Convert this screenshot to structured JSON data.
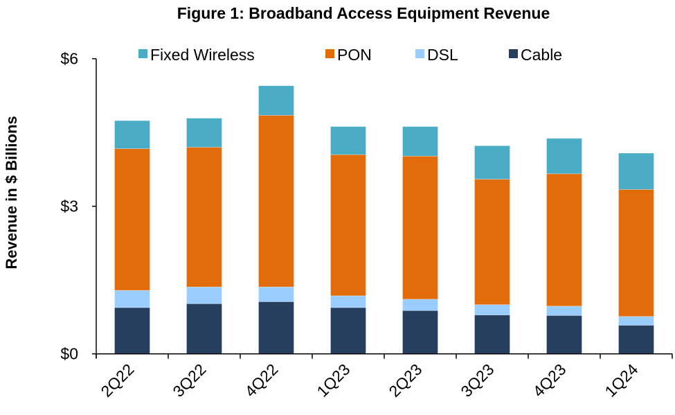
{
  "chart_data": {
    "type": "bar",
    "stacked": true,
    "title": "Figure 1: Broadband Access Equipment Revenue",
    "xlabel": "",
    "ylabel": "Revenue in $ Billions",
    "ylim": [
      0,
      6
    ],
    "yticks": [
      0,
      3,
      6
    ],
    "ytick_labels": [
      "$0",
      "$3",
      "$6"
    ],
    "grid": false,
    "legend_position": "top",
    "categories": [
      "2Q22",
      "3Q22",
      "4Q22",
      "1Q23",
      "2Q23",
      "3Q23",
      "4Q23",
      "1Q24"
    ],
    "series": [
      {
        "name": "Cable",
        "color": "#263f5f",
        "values": [
          0.94,
          1.02,
          1.06,
          0.94,
          0.88,
          0.79,
          0.78,
          0.58
        ]
      },
      {
        "name": "DSL",
        "color": "#99ccff",
        "values": [
          0.35,
          0.34,
          0.3,
          0.24,
          0.23,
          0.21,
          0.19,
          0.18
        ]
      },
      {
        "name": "PON",
        "color": "#e36c0a",
        "values": [
          2.88,
          2.84,
          3.49,
          2.87,
          2.91,
          2.55,
          2.69,
          2.58
        ]
      },
      {
        "name": "Fixed Wireless",
        "color": "#4bacc6",
        "values": [
          0.57,
          0.59,
          0.6,
          0.57,
          0.6,
          0.68,
          0.72,
          0.74
        ]
      }
    ],
    "legend_order": [
      "Fixed Wireless",
      "PON",
      "DSL",
      "Cable"
    ]
  }
}
